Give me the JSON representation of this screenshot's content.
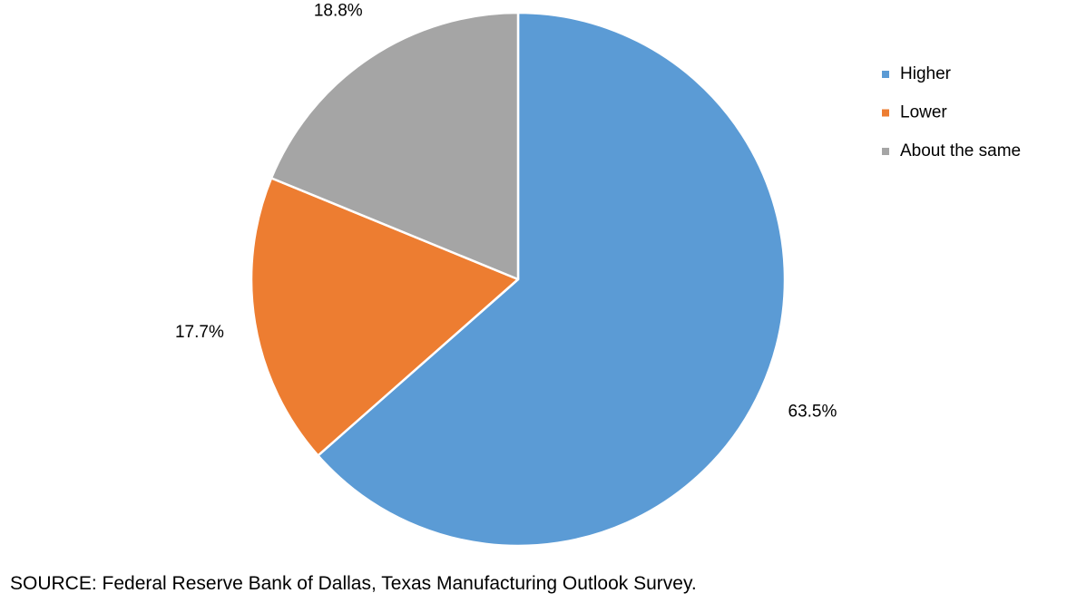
{
  "chart_data": {
    "type": "pie",
    "start_angle_deg": 0,
    "direction": "clockwise",
    "slices": [
      {
        "label": "Higher",
        "value": 63.5,
        "display": "63.5%",
        "color": "#5b9bd5"
      },
      {
        "label": "Lower",
        "value": 17.7,
        "display": "17.7%",
        "color": "#ed7d31"
      },
      {
        "label": "About the same",
        "value": 18.8,
        "display": "18.8%",
        "color": "#a5a5a5"
      }
    ],
    "legend": {
      "placement": "right",
      "entries": [
        "Higher",
        "Lower",
        "About the same"
      ]
    },
    "slice_border_color": "#ffffff"
  },
  "source": "SOURCE: Federal Reserve Bank of Dallas, Texas Manufacturing Outlook Survey."
}
